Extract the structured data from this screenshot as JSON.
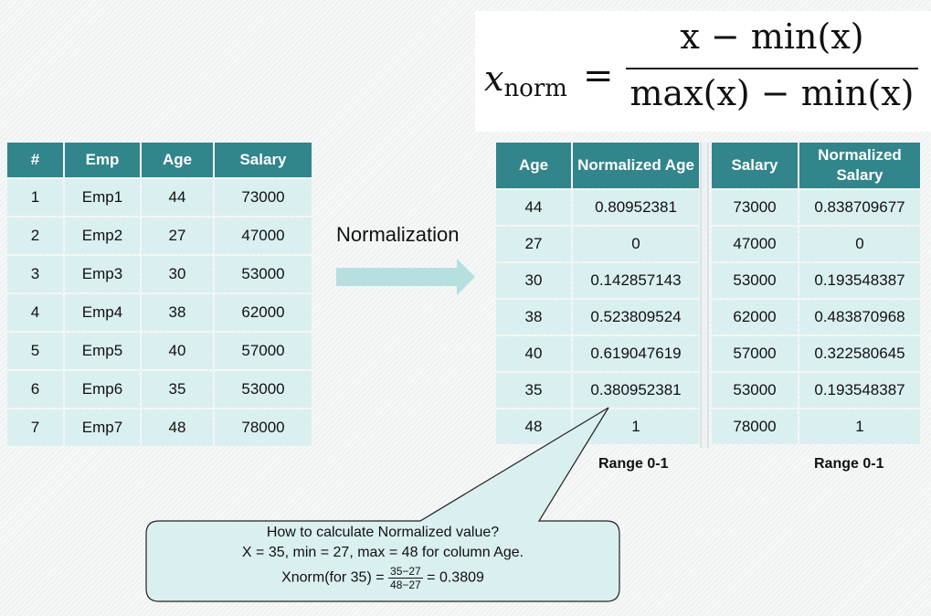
{
  "formula": {
    "lhs": "x",
    "lhs_sub": "norm",
    "eq": "=",
    "numerator": "x − min(x)",
    "denominator": "max(x) − min(x)"
  },
  "left_table": {
    "headers": [
      "#",
      "Emp",
      "Age",
      "Salary"
    ],
    "rows": [
      [
        "1",
        "Emp1",
        "44",
        "73000"
      ],
      [
        "2",
        "Emp2",
        "27",
        "47000"
      ],
      [
        "3",
        "Emp3",
        "30",
        "53000"
      ],
      [
        "4",
        "Emp4",
        "38",
        "62000"
      ],
      [
        "5",
        "Emp5",
        "40",
        "57000"
      ],
      [
        "6",
        "Emp6",
        "35",
        "53000"
      ],
      [
        "7",
        "Emp7",
        "48",
        "78000"
      ]
    ]
  },
  "arrow_label": "Normalization",
  "age_table": {
    "headers": [
      "Age",
      "Normalized Age"
    ],
    "rows": [
      [
        "44",
        "0.80952381"
      ],
      [
        "27",
        "0"
      ],
      [
        "30",
        "0.142857143"
      ],
      [
        "38",
        "0.523809524"
      ],
      [
        "40",
        "0.619047619"
      ],
      [
        "35",
        "0.380952381"
      ],
      [
        "48",
        "1"
      ]
    ],
    "range_label": "Range 0-1"
  },
  "salary_table": {
    "headers": [
      "Salary",
      "Normalized Salary"
    ],
    "rows": [
      [
        "73000",
        "0.838709677"
      ],
      [
        "47000",
        "0"
      ],
      [
        "53000",
        "0.193548387"
      ],
      [
        "62000",
        "0.483870968"
      ],
      [
        "57000",
        "0.322580645"
      ],
      [
        "53000",
        "0.193548387"
      ],
      [
        "78000",
        "1"
      ]
    ],
    "range_label": "Range 0-1"
  },
  "callout": {
    "line1": "How to calculate Normalized value?",
    "line2": "X = 35, min = 27, max = 48 for column Age.",
    "line3_prefix": "Xnorm(for 35) =",
    "frac_num": "35−27",
    "frac_den": "48−27",
    "line3_suffix": "= 0.3809"
  },
  "colors": {
    "header": "#31858b",
    "cell": "#daeff0",
    "arrow": "#b7dfe0",
    "callout_fill": "#daeff0"
  }
}
